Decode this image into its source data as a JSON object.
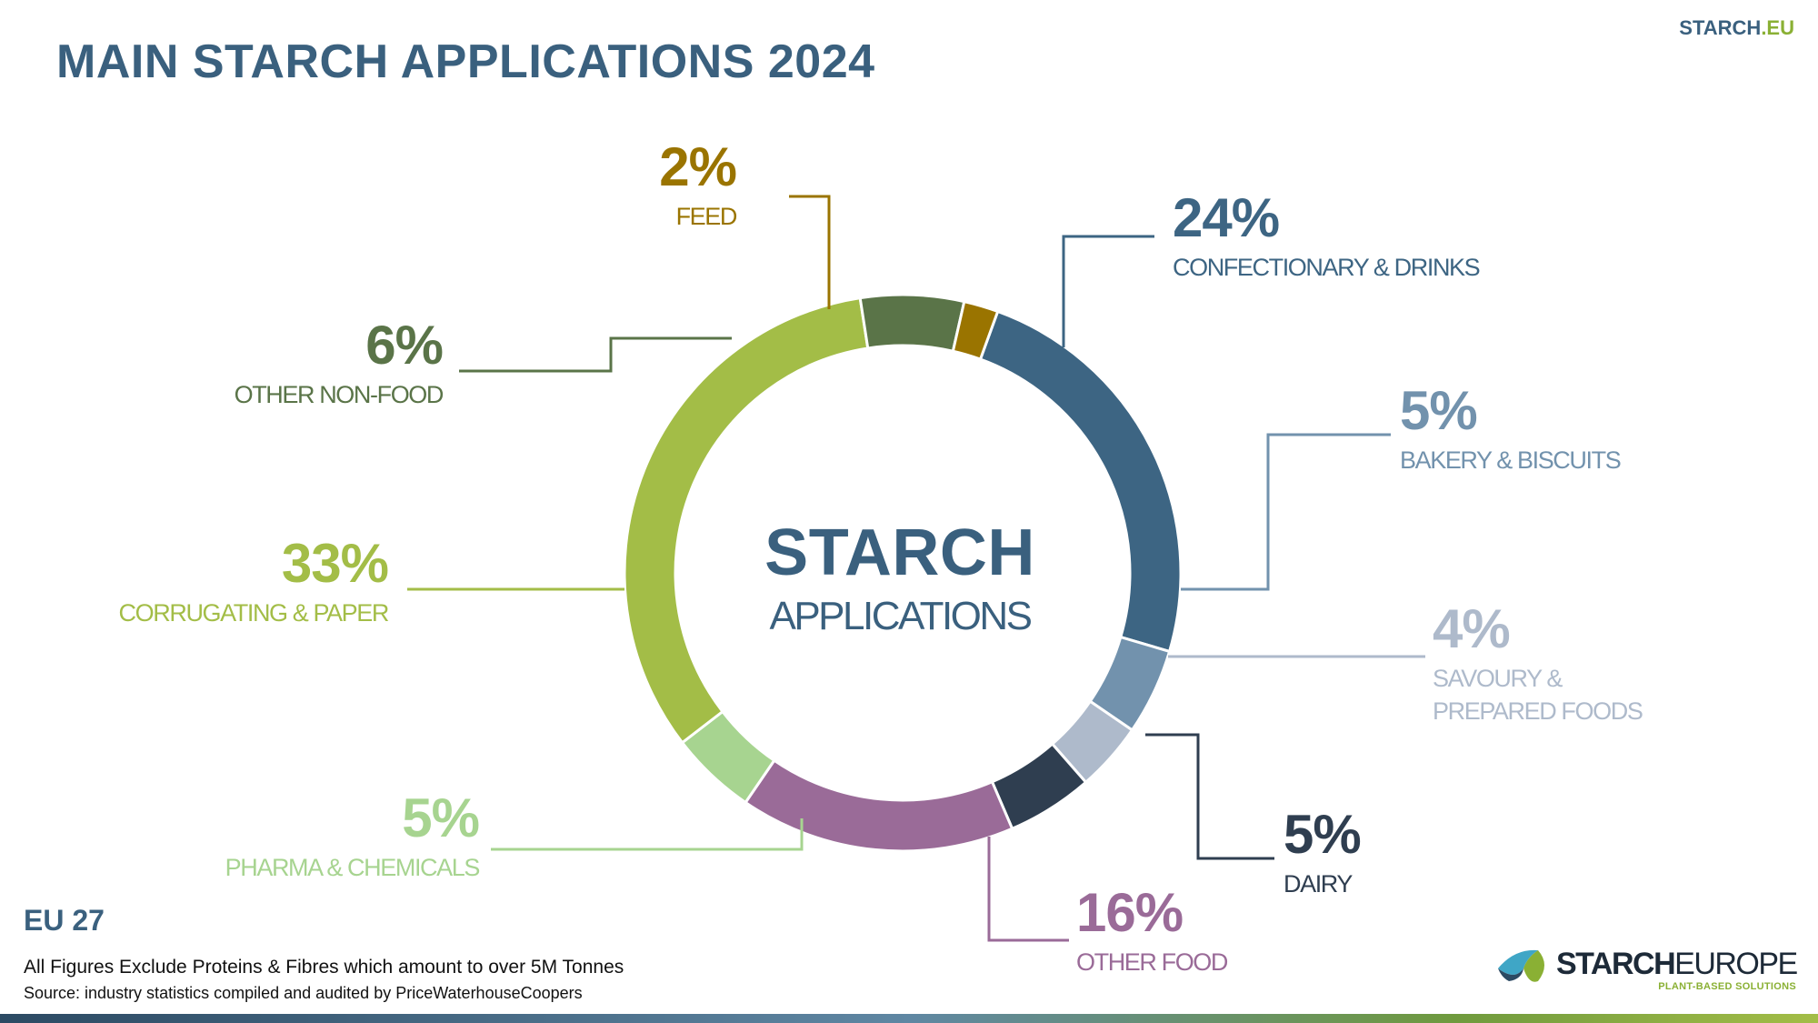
{
  "header": {
    "title": "MAIN STARCH APPLICATIONS 2024",
    "brand_main": "STARCH",
    "brand_suffix": ".EU"
  },
  "center": {
    "line1": "STARCH",
    "line2": "APPLICATIONS"
  },
  "footer": {
    "region": "EU 27",
    "note": "All Figures Exclude Proteins & Fibres which amount to over 5M Tonnes",
    "source": "Source: industry statistics compiled and audited by PriceWaterhouseCoopers",
    "logo_main": "STARCH",
    "logo_sub": "EUROPE",
    "logo_tagline": "PLANT-BASED SOLUTIONS"
  },
  "chart_data": {
    "type": "pie",
    "donut": true,
    "title": "MAIN STARCH APPLICATIONS 2024",
    "slices": [
      {
        "label": "CONFECTIONARY & DRINKS",
        "pct_label": "24%",
        "value": 24,
        "color": "#3d6583"
      },
      {
        "label": "BAKERY & BISCUITS",
        "pct_label": "5%",
        "value": 5,
        "color": "#7292ad"
      },
      {
        "label": "SAVOURY & PREPARED FOODS",
        "label_lines": [
          "SAVOURY &",
          "PREPARED FOODS"
        ],
        "pct_label": "4%",
        "value": 4,
        "color": "#aebacb"
      },
      {
        "label": "DAIRY",
        "pct_label": "5%",
        "value": 5,
        "color": "#2f3e50"
      },
      {
        "label": "OTHER FOOD",
        "pct_label": "16%",
        "value": 16,
        "color": "#9a6b98"
      },
      {
        "label": "PHARMA & CHEMICALS",
        "pct_label": "5%",
        "value": 5,
        "color": "#a7d490"
      },
      {
        "label": "CORRUGATING & PAPER",
        "pct_label": "33%",
        "value": 33,
        "color": "#a3bd47"
      },
      {
        "label": "OTHER NON-FOOD",
        "pct_label": "6%",
        "value": 6,
        "color": "#5a7448"
      },
      {
        "label": "FEED",
        "pct_label": "2%",
        "value": 2,
        "color": "#9a7400"
      }
    ]
  }
}
